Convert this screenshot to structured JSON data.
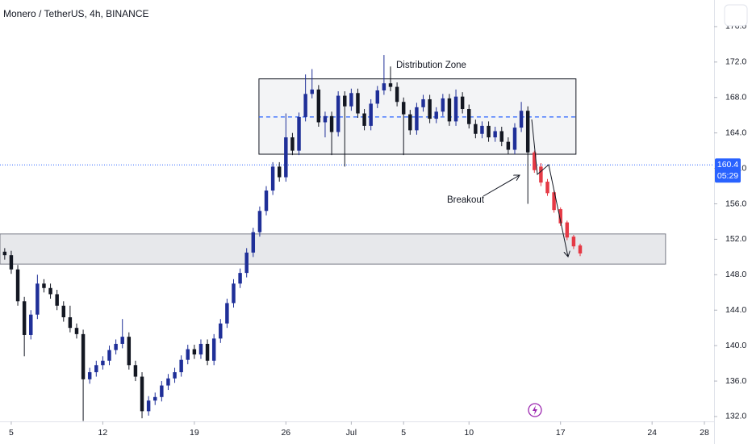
{
  "chart_data": {
    "type": "candlestick",
    "title": "Monero / TetherUS, 4h, BINANCE",
    "ylim": [
      131.45,
      179.0
    ],
    "yticks": [
      {
        "value": 132,
        "label": "132.0"
      },
      {
        "value": 136,
        "label": "136.0"
      },
      {
        "value": 140,
        "label": "140.0"
      },
      {
        "value": 144,
        "label": "144.0"
      },
      {
        "value": 148,
        "label": "148.0"
      },
      {
        "value": 152,
        "label": "152.0"
      },
      {
        "value": 156,
        "label": "156.0"
      },
      {
        "value": 160,
        "label": "160.0"
      },
      {
        "value": 164,
        "label": "164.0"
      },
      {
        "value": 168,
        "label": "168.0"
      },
      {
        "value": 172,
        "label": "172.0"
      },
      {
        "value": 176,
        "label": "176.0"
      }
    ],
    "xlim": [
      4.14,
      58.74
    ],
    "xticks": [
      {
        "value": 5,
        "label": "5"
      },
      {
        "value": 12,
        "label": "12"
      },
      {
        "value": 19,
        "label": "19"
      },
      {
        "value": 26,
        "label": "26"
      },
      {
        "value": 31,
        "label": "Jul"
      },
      {
        "value": 35,
        "label": "5"
      },
      {
        "value": 40,
        "label": "10"
      },
      {
        "value": 47,
        "label": "17"
      },
      {
        "value": 54,
        "label": "24"
      },
      {
        "value": 58,
        "label": "28"
      }
    ],
    "up_color": "#1f2f98",
    "down_color": "#131722",
    "candles": {
      "x": [
        4.5,
        5,
        5.5,
        6,
        6.5,
        7,
        7.5,
        8,
        8.5,
        9,
        9.5,
        10,
        10.5,
        11,
        11.5,
        12,
        12.5,
        13,
        13.5,
        14,
        14.5,
        15,
        15.5,
        16,
        16.5,
        17,
        17.5,
        18,
        18.5,
        19,
        19.5,
        20,
        20.5,
        21,
        21.5,
        22,
        22.5,
        23,
        23.5,
        24,
        24.5,
        25,
        25.5,
        26,
        26.5,
        27,
        27.5,
        28,
        28.5,
        29,
        29.5,
        30,
        30.5,
        31,
        31.5,
        32,
        32.5,
        33,
        33.5,
        34,
        34.5,
        35,
        35.5,
        36,
        36.5,
        37,
        37.5,
        38,
        38.5,
        39,
        39.5,
        40,
        40.5,
        41,
        41.5,
        42,
        42.5,
        43,
        43.5,
        44,
        44.5
      ],
      "open": [
        150.6,
        150.2,
        148.6,
        145.0,
        141.2,
        143.5,
        147.0,
        146.5,
        145.8,
        144.5,
        143.2,
        142.0,
        141.3,
        136.2,
        137.0,
        137.8,
        138.3,
        139.5,
        140.2,
        141.0,
        137.8,
        136.5,
        132.6,
        133.8,
        134.2,
        135.5,
        136.3,
        137.0,
        138.4,
        139.6,
        139.0,
        140.2,
        138.3,
        140.8,
        142.5,
        144.8,
        147.0,
        148.2,
        150.5,
        152.8,
        155.2,
        157.5,
        160.2,
        159.0,
        163.5,
        162.0,
        165.8,
        168.4,
        168.9,
        165.2,
        165.9,
        164.1,
        168.2,
        167.0,
        168.5,
        166.2,
        164.8,
        167.3,
        168.8,
        169.6,
        169.2,
        167.5,
        166.1,
        164.3,
        166.9,
        167.8,
        165.6,
        166.4,
        167.9,
        165.3,
        168.1,
        166.7,
        165.0,
        163.9,
        164.8,
        163.5,
        164.2,
        163.0,
        162.1,
        164.6,
        166.5
      ],
      "high": [
        151.0,
        150.7,
        149.1,
        145.5,
        144.0,
        148.0,
        147.5,
        147.0,
        146.3,
        145.0,
        144.5,
        142.5,
        141.8,
        137.5,
        138.3,
        138.8,
        140.0,
        140.7,
        143.0,
        141.5,
        138.3,
        137.0,
        134.3,
        134.7,
        136.0,
        136.8,
        137.5,
        138.9,
        140.1,
        140.1,
        140.7,
        140.7,
        141.3,
        143.0,
        145.3,
        147.5,
        148.7,
        151.0,
        153.3,
        155.7,
        158.0,
        160.7,
        160.7,
        166.2,
        164.0,
        166.3,
        170.6,
        171.2,
        169.4,
        166.4,
        166.4,
        168.7,
        168.7,
        169.0,
        169.0,
        166.7,
        167.8,
        169.3,
        172.8,
        171.5,
        169.7,
        168.0,
        166.6,
        167.4,
        168.3,
        168.3,
        166.9,
        168.4,
        168.4,
        168.9,
        168.6,
        167.2,
        165.5,
        165.3,
        165.3,
        164.7,
        164.7,
        163.5,
        165.1,
        167.5,
        167.0
      ],
      "low": [
        149.7,
        148.1,
        144.5,
        138.8,
        140.7,
        143.0,
        146.0,
        145.3,
        144.0,
        142.7,
        141.5,
        140.8,
        131.5,
        135.7,
        136.5,
        137.3,
        137.8,
        139.0,
        139.7,
        137.3,
        136.0,
        131.8,
        132.1,
        133.3,
        133.7,
        135.0,
        135.8,
        136.5,
        137.9,
        138.5,
        138.5,
        137.8,
        137.8,
        140.3,
        142.0,
        144.3,
        146.5,
        147.7,
        150.0,
        152.3,
        154.7,
        157.0,
        158.5,
        158.5,
        161.5,
        161.5,
        165.3,
        167.9,
        164.7,
        163.5,
        161.5,
        163.6,
        160.2,
        166.5,
        165.7,
        164.3,
        164.3,
        166.8,
        168.3,
        168.7,
        167.0,
        161.5,
        163.8,
        163.8,
        166.4,
        165.1,
        165.1,
        165.9,
        164.8,
        164.8,
        166.2,
        164.5,
        163.4,
        163.4,
        163.0,
        163.0,
        162.5,
        161.6,
        161.6,
        164.1,
        156.0
      ],
      "close": [
        150.2,
        148.6,
        145.0,
        141.2,
        143.5,
        147.0,
        146.5,
        145.8,
        144.5,
        143.2,
        142.0,
        141.3,
        136.2,
        137.0,
        137.8,
        138.3,
        139.5,
        140.2,
        141.0,
        137.8,
        136.5,
        132.6,
        133.8,
        134.2,
        135.5,
        136.3,
        137.0,
        138.4,
        139.6,
        139.0,
        140.2,
        138.3,
        140.8,
        142.5,
        144.8,
        147.0,
        148.2,
        150.5,
        152.8,
        155.2,
        157.5,
        160.2,
        159.0,
        163.5,
        162.0,
        165.8,
        168.4,
        168.9,
        165.2,
        165.9,
        164.1,
        168.2,
        167.0,
        168.5,
        166.2,
        164.8,
        167.3,
        168.8,
        169.6,
        169.2,
        167.5,
        166.1,
        164.3,
        166.9,
        167.8,
        165.6,
        166.4,
        167.9,
        165.3,
        168.1,
        166.7,
        165.0,
        163.9,
        164.8,
        163.5,
        164.2,
        163.0,
        162.1,
        164.6,
        166.5,
        161.8
      ]
    },
    "projection": {
      "color": "#e53945",
      "x": [
        45,
        45.5,
        46,
        46.5,
        47,
        47.5,
        48,
        48.5
      ],
      "open": [
        161.8,
        160.2,
        158.5,
        157.3,
        155.4,
        153.9,
        152.3,
        151.3
      ],
      "high": [
        162.0,
        160.6,
        158.8,
        157.5,
        155.6,
        154.1,
        152.5,
        151.5
      ],
      "low": [
        159.5,
        158.0,
        156.9,
        155.0,
        153.5,
        151.9,
        150.9,
        150.1
      ],
      "close": [
        159.8,
        158.4,
        157.2,
        155.3,
        153.8,
        152.2,
        151.2,
        150.4
      ]
    },
    "zones": [
      {
        "x": [
          23.94,
          48.18
        ],
        "y": [
          161.6,
          170.1
        ],
        "color": "#f3f4f6",
        "border": "#131722"
      },
      {
        "x": [
          4.14,
          55.03
        ],
        "y": [
          149.2,
          152.6
        ],
        "color": "#e7e8eb",
        "border": "#787b86"
      }
    ],
    "level": {
      "value": 165.8,
      "x": [
        23.94,
        48.18
      ],
      "color": "#2962ff"
    },
    "last_price": 160.4,
    "last_price_color": "#2962ff",
    "countdown": "05:29",
    "annotations": [
      "Distribution Zone",
      "Breakout"
    ]
  }
}
